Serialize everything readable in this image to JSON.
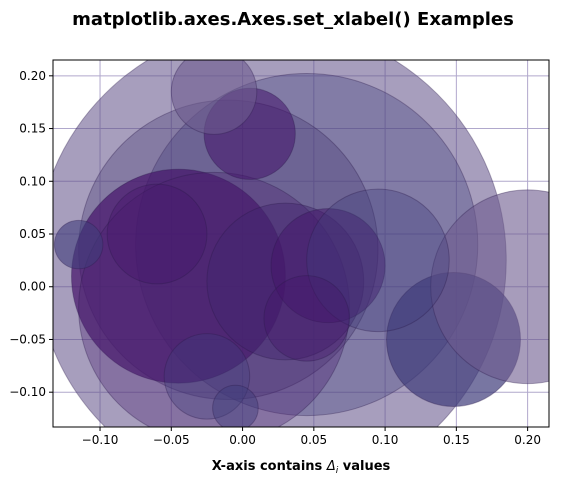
{
  "chart_data": {
    "type": "scatter",
    "title": "matplotlib.axes.Axes.set_xlabel() Examples",
    "xlabel_main": "X-axis contains ",
    "xlabel_math": "Δ",
    "xlabel_sub": "i",
    "xlabel_end": " values",
    "ylabel": "",
    "xlim": [
      -0.133,
      0.215
    ],
    "ylim": [
      -0.133,
      0.215
    ],
    "xticks": [
      -0.1,
      -0.05,
      0.0,
      0.05,
      0.1,
      0.15,
      0.2
    ],
    "yticks": [
      -0.1,
      -0.05,
      0.0,
      0.05,
      0.1,
      0.15,
      0.2
    ],
    "xtick_labels": [
      "−0.10",
      "−0.05",
      "0.00",
      "0.05",
      "0.10",
      "0.15",
      "0.20"
    ],
    "ytick_labels": [
      "−0.10",
      "−0.05",
      "0.00",
      "0.05",
      "0.10",
      "0.15",
      "0.20"
    ],
    "grid": true,
    "colors": {
      "grid": "#b0a8cc",
      "dark_marker": "#44136a",
      "mid_marker": "#3f3c7a",
      "light_marker": "#6c5a8e",
      "edge": "#2a1a4a"
    },
    "markers": [
      {
        "x": 0.02,
        "y": 0.025,
        "r": 0.165,
        "color": "#5e4f86",
        "alpha": 0.55
      },
      {
        "x": 0.045,
        "y": 0.04,
        "r": 0.12,
        "color": "#3f3c7a",
        "alpha": 0.35
      },
      {
        "x": -0.01,
        "y": 0.035,
        "r": 0.105,
        "color": "#483a74",
        "alpha": 0.35
      },
      {
        "x": -0.045,
        "y": 0.01,
        "r": 0.075,
        "color": "#44136a",
        "alpha": 0.7
      },
      {
        "x": -0.02,
        "y": -0.02,
        "r": 0.095,
        "color": "#4a2070",
        "alpha": 0.35
      },
      {
        "x": 0.03,
        "y": 0.005,
        "r": 0.055,
        "color": "#43256f",
        "alpha": 0.45
      },
      {
        "x": 0.06,
        "y": 0.02,
        "r": 0.04,
        "color": "#44136a",
        "alpha": 0.5
      },
      {
        "x": 0.005,
        "y": 0.145,
        "r": 0.032,
        "color": "#44136a",
        "alpha": 0.55
      },
      {
        "x": -0.02,
        "y": 0.185,
        "r": 0.03,
        "color": "#6c5a8e",
        "alpha": 0.6
      },
      {
        "x": -0.115,
        "y": 0.04,
        "r": 0.017,
        "color": "#3f3c7a",
        "alpha": 0.6
      },
      {
        "x": 0.148,
        "y": -0.05,
        "r": 0.047,
        "color": "#3f3c7a",
        "alpha": 0.7
      },
      {
        "x": 0.2,
        "y": 0.0,
        "r": 0.068,
        "color": "#6c5a8e",
        "alpha": 0.6
      },
      {
        "x": 0.095,
        "y": 0.025,
        "r": 0.05,
        "color": "#3f3c7a",
        "alpha": 0.35
      },
      {
        "x": -0.06,
        "y": 0.05,
        "r": 0.035,
        "color": "#44136a",
        "alpha": 0.35
      },
      {
        "x": -0.025,
        "y": -0.085,
        "r": 0.03,
        "color": "#3f3c7a",
        "alpha": 0.35
      },
      {
        "x": 0.045,
        "y": -0.03,
        "r": 0.03,
        "color": "#44136a",
        "alpha": 0.35
      },
      {
        "x": -0.005,
        "y": -0.115,
        "r": 0.016,
        "color": "#3f3c7a",
        "alpha": 0.45
      }
    ]
  }
}
